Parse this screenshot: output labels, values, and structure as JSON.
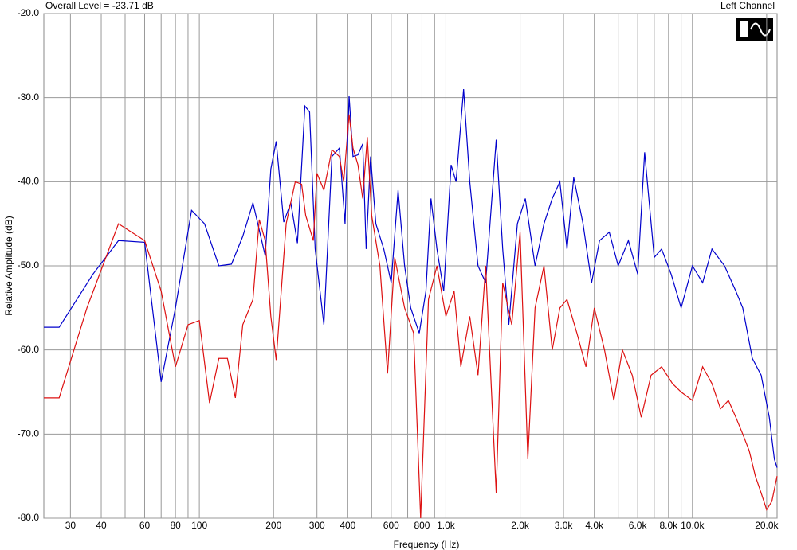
{
  "chart_data": {
    "type": "line",
    "title": "Overall Level = -23.71 dB",
    "subtitle": "Left Channel",
    "x_label": "Frequency (Hz)",
    "y_label": "Relative Amplitude (dB)",
    "xscale": "log",
    "grid": true,
    "xlim": [
      23.4,
      22050
    ],
    "ylim": [
      -80,
      -20
    ],
    "xticks": [
      30,
      40,
      60,
      80,
      100,
      200,
      300,
      400,
      600,
      800,
      {
        "value": 1000,
        "label": "1.0k"
      },
      {
        "value": 2000,
        "label": "2.0k"
      },
      {
        "value": 3000,
        "label": "3.0k"
      },
      {
        "value": 4000,
        "label": "4.0k"
      },
      {
        "value": 6000,
        "label": "6.0k"
      },
      {
        "value": 8000,
        "label": "8.0k"
      },
      {
        "value": 10000,
        "label": "10.0k"
      },
      {
        "value": 20000,
        "label": "20.0k"
      }
    ],
    "xminor": [
      50,
      70,
      90,
      500,
      700,
      900,
      5000,
      7000,
      9000
    ],
    "yticks": [
      {
        "value": -20,
        "label": "-20.0"
      },
      {
        "value": -30,
        "label": "-30.0"
      },
      {
        "value": -40,
        "label": "-40.0"
      },
      {
        "value": -50,
        "label": "-50.0"
      },
      {
        "value": -60,
        "label": "-60.0"
      },
      {
        "value": -70,
        "label": "-70.0"
      },
      {
        "value": -80,
        "label": "-80.0"
      }
    ],
    "series": [
      {
        "color": "#0000cc",
        "x": [
          23.4,
          27,
          37,
          47,
          60,
          70,
          80,
          93,
          105,
          120,
          135,
          150,
          165,
          185,
          195,
          205,
          220,
          235,
          250,
          268,
          280,
          295,
          320,
          345,
          370,
          390,
          405,
          420,
          440,
          460,
          475,
          495,
          520,
          560,
          600,
          640,
          680,
          720,
          780,
          830,
          870,
          920,
          980,
          1050,
          1100,
          1180,
          1250,
          1350,
          1450,
          1600,
          1700,
          1800,
          1950,
          2100,
          2300,
          2500,
          2700,
          2900,
          3100,
          3300,
          3600,
          3900,
          4200,
          4600,
          5000,
          5500,
          6000,
          6400,
          7000,
          7500,
          8200,
          9000,
          10000,
          11000,
          12000,
          13500,
          15000,
          16000,
          17500,
          19000,
          20500,
          21500,
          22050
        ],
        "values": [
          -57.3,
          -57.3,
          -51,
          -47,
          -47.2,
          -63.8,
          -55,
          -43.4,
          -45,
          -50,
          -49.8,
          -46.5,
          -42.5,
          -48.8,
          -38.5,
          -35.2,
          -44.8,
          -42.5,
          -47.3,
          -31,
          -31.7,
          -48,
          -57,
          -37,
          -36,
          -45,
          -29.8,
          -37,
          -36.8,
          -35.5,
          -48,
          -37,
          -45,
          -48,
          -52,
          -41,
          -50,
          -55,
          -58,
          -53,
          -42,
          -48,
          -53,
          -38,
          -40,
          -29,
          -40,
          -50,
          -52,
          -35,
          -48,
          -57,
          -45,
          -42,
          -50,
          -45,
          -42,
          -40,
          -48,
          -39.5,
          -45,
          -52,
          -47,
          -46,
          -50,
          -47,
          -51,
          -36.5,
          -49,
          -48,
          -51,
          -55,
          -50,
          -52,
          -48,
          -50,
          -53,
          -55,
          -61,
          -63,
          -68,
          -73,
          -74
        ]
      },
      {
        "color": "#dd1111",
        "x": [
          23.4,
          27,
          35,
          47,
          60,
          70,
          80,
          90,
          100,
          110,
          120,
          130,
          140,
          150,
          165,
          175,
          185,
          195,
          205,
          225,
          245,
          260,
          270,
          290,
          300,
          320,
          345,
          370,
          385,
          405,
          420,
          440,
          460,
          480,
          500,
          540,
          580,
          620,
          680,
          740,
          790,
          850,
          920,
          1000,
          1080,
          1150,
          1250,
          1350,
          1450,
          1600,
          1700,
          1850,
          2000,
          2150,
          2300,
          2500,
          2700,
          2900,
          3100,
          3400,
          3700,
          4000,
          4400,
          4800,
          5200,
          5700,
          6200,
          6800,
          7500,
          8300,
          9000,
          10000,
          11000,
          12000,
          13000,
          14000,
          15000,
          16000,
          17000,
          18000,
          19000,
          20000,
          21000,
          22050
        ],
        "values": [
          -65.7,
          -65.7,
          -55,
          -45,
          -47,
          -53,
          -62,
          -57,
          -56.5,
          -66.3,
          -61,
          -61,
          -65.7,
          -57,
          -54,
          -44.5,
          -47,
          -56,
          -61.2,
          -45,
          -40,
          -40.3,
          -44,
          -47,
          -39,
          -41,
          -36.2,
          -37,
          -40,
          -32,
          -36,
          -38,
          -42,
          -34.7,
          -44,
          -50,
          -62.8,
          -49,
          -55,
          -58,
          -80,
          -54,
          -50,
          -56,
          -53,
          -62,
          -56,
          -63,
          -50,
          -77,
          -52,
          -57,
          -46,
          -73,
          -55,
          -50,
          -60,
          -55,
          -54,
          -58,
          -62,
          -55,
          -60,
          -66,
          -60,
          -63,
          -68,
          -63,
          -62,
          -64,
          -65,
          -66,
          -62,
          -64,
          -67,
          -66,
          -68,
          -70,
          -72,
          -75,
          -77,
          -79,
          -78,
          -75
        ]
      }
    ]
  }
}
